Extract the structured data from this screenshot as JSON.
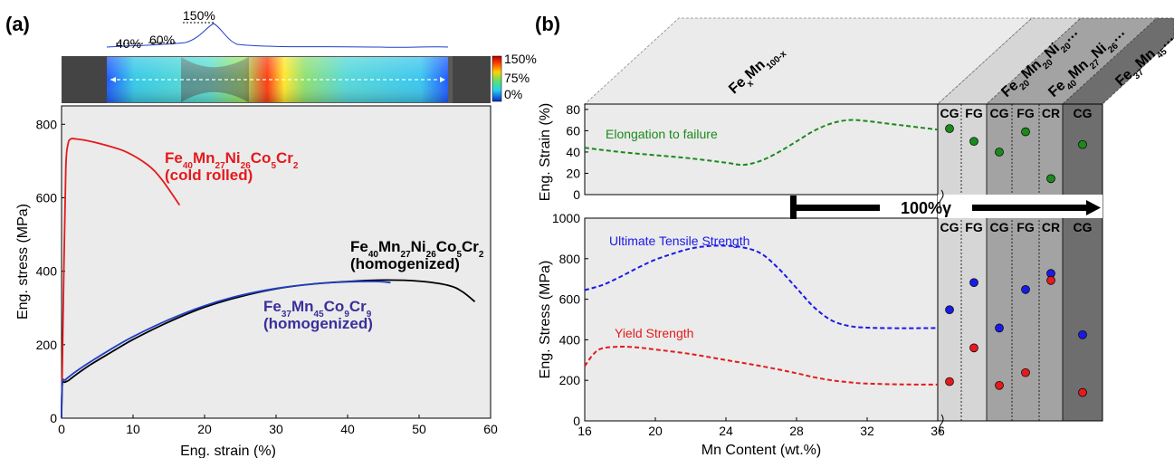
{
  "panel_a": {
    "label": "(a)",
    "strain_pcts": [
      "40%",
      "60%",
      "150%"
    ],
    "colorbar_ticks": [
      "150%",
      "75%",
      "0%"
    ],
    "chart_data": {
      "type": "line",
      "xlabel": "Eng. strain (%)",
      "ylabel": "Eng. stress (MPa)",
      "xlim": [
        0,
        60
      ],
      "ylim": [
        0,
        850
      ],
      "x_ticks": [
        0,
        10,
        20,
        30,
        40,
        50,
        60
      ],
      "y_ticks": [
        0,
        200,
        400,
        600,
        800
      ],
      "series": [
        {
          "color": "#e41a1c",
          "x": [
            0,
            0.3,
            0.6,
            0.9,
            1.3,
            2.0,
            3.5,
            6,
            9,
            12,
            14,
            16.5
          ],
          "y": [
            0,
            380,
            680,
            745,
            760,
            760,
            756,
            744,
            725,
            690,
            650,
            580
          ]
        },
        {
          "color": "#000000",
          "x": [
            0,
            0.1,
            0.5,
            1,
            2,
            4,
            7,
            10,
            15,
            20,
            25,
            30,
            35,
            40,
            45,
            50,
            54,
            56,
            57.8
          ],
          "y": [
            0,
            90,
            98,
            103,
            118,
            145,
            180,
            214,
            262,
            302,
            331,
            352,
            365,
            372,
            376,
            373,
            362,
            345,
            317
          ]
        },
        {
          "color": "#1f3fc8",
          "x": [
            0,
            0.1,
            0.5,
            1,
            2,
            4,
            7,
            10,
            15,
            20,
            25,
            30,
            35,
            40,
            44,
            46
          ],
          "y": [
            0,
            96,
            104,
            112,
            127,
            153,
            189,
            222,
            268,
            306,
            334,
            353,
            365,
            371,
            372,
            369
          ]
        }
      ],
      "annotations": [
        {
          "parts": [
            [
              "Fe",
              ""
            ],
            [
              "40",
              "sub"
            ],
            [
              "Mn",
              ""
            ],
            [
              "27",
              "sub"
            ],
            [
              "Ni",
              ""
            ],
            [
              "26",
              "sub"
            ],
            [
              "Co",
              ""
            ],
            [
              "5",
              "sub"
            ],
            [
              "Cr",
              ""
            ],
            [
              "2",
              "sub"
            ]
          ],
          "color": "#e41a1c"
        },
        {
          "parts": [
            [
              "(cold rolled)",
              ""
            ]
          ],
          "color": "#e41a1c"
        },
        {
          "parts": [
            [
              "Fe",
              ""
            ],
            [
              "40",
              "sub"
            ],
            [
              "Mn",
              ""
            ],
            [
              "27",
              "sub"
            ],
            [
              "Ni",
              ""
            ],
            [
              "26",
              "sub"
            ],
            [
              "Co",
              ""
            ],
            [
              "5",
              "sub"
            ],
            [
              "Cr",
              ""
            ],
            [
              "2",
              "sub"
            ]
          ],
          "color": "#000000"
        },
        {
          "parts": [
            [
              "(homogenized)",
              ""
            ]
          ],
          "color": "#000000"
        },
        {
          "parts": [
            [
              "Fe",
              ""
            ],
            [
              "37",
              "sub"
            ],
            [
              "Mn",
              ""
            ],
            [
              "45",
              "sub"
            ],
            [
              "Co",
              ""
            ],
            [
              "9",
              "sub"
            ],
            [
              "Cr",
              ""
            ],
            [
              "9",
              "sub"
            ]
          ],
          "color": "#3a2f9a"
        },
        {
          "parts": [
            [
              "(homogenized)",
              ""
            ]
          ],
          "color": "#3a2f9a"
        }
      ]
    }
  },
  "panel_b": {
    "label": "(b)",
    "column_headers": [
      {
        "parts": [
          [
            "Fe",
            ""
          ],
          [
            "x",
            "sub"
          ],
          [
            "Mn",
            ""
          ],
          [
            "100-x",
            "sub"
          ]
        ]
      },
      {
        "parts": [
          [
            "Fe",
            ""
          ],
          [
            "20",
            "sub"
          ],
          [
            "Mn",
            ""
          ],
          [
            "20",
            "sub"
          ],
          [
            "Ni",
            ""
          ],
          [
            "20",
            "sub"
          ],
          [
            "…",
            ""
          ]
        ]
      },
      {
        "parts": [
          [
            "Fe",
            ""
          ],
          [
            "40",
            "sub"
          ],
          [
            "Mn",
            ""
          ],
          [
            "27",
            "sub"
          ],
          [
            "Ni",
            ""
          ],
          [
            "26",
            "sub"
          ],
          [
            "…",
            ""
          ]
        ]
      },
      {
        "parts": [
          [
            "Fe",
            ""
          ],
          [
            "37",
            "sub"
          ],
          [
            "Mn",
            ""
          ],
          [
            "45",
            "sub"
          ],
          [
            "…",
            ""
          ]
        ]
      }
    ],
    "gamma_label": "100%γ",
    "cells": [
      "CG",
      "FG",
      "CG",
      "FG",
      "CR",
      "CG"
    ],
    "chart_data": [
      {
        "type": "line",
        "ylabel": "Eng. Strain (%)",
        "xlim": [
          16,
          36
        ],
        "ylim": [
          0,
          85
        ],
        "y_ticks": [
          0,
          20,
          40,
          60,
          80
        ],
        "series": [
          {
            "name": "Elongation to failure",
            "color": "#1a8a1a",
            "x": [
              16,
              18,
              20,
              22,
              24,
              25,
              26,
              27,
              28,
              29,
              30,
              31,
              32,
              34,
              36
            ],
            "y": [
              44,
              40,
              37,
              34,
              30,
              28,
              32,
              40,
              50,
              60,
              67,
              70,
              69,
              65,
              61
            ]
          }
        ],
        "points": [
          {
            "cell": 0,
            "color": "#1a8a1a",
            "y": 62
          },
          {
            "cell": 1,
            "color": "#1a8a1a",
            "y": 50
          },
          {
            "cell": 2,
            "color": "#1a8a1a",
            "y": 40
          },
          {
            "cell": 3,
            "color": "#1a8a1a",
            "y": 59
          },
          {
            "cell": 4,
            "color": "#1a8a1a",
            "y": 15
          },
          {
            "cell": 5,
            "color": "#1a8a1a",
            "y": 47
          }
        ]
      },
      {
        "type": "line",
        "xlabel": "Mn Content (wt.%)",
        "ylabel": "Eng. Stress (MPa)",
        "xlim": [
          16,
          36
        ],
        "ylim": [
          0,
          1000
        ],
        "x_ticks": [
          16,
          20,
          24,
          28,
          32,
          36
        ],
        "y_ticks": [
          0,
          200,
          400,
          600,
          800,
          1000
        ],
        "series": [
          {
            "name": "Ultimate Tensile Strength",
            "color": "#1a1ae6",
            "x": [
              16,
              17,
              18,
              19,
              20,
              21,
              22,
              23,
              24,
              25,
              26,
              27,
              28,
              29,
              30,
              31,
              32,
              34,
              36
            ],
            "y": [
              645,
              670,
              710,
              755,
              795,
              825,
              850,
              862,
              864,
              855,
              825,
              750,
              655,
              560,
              495,
              468,
              460,
              457,
              458
            ]
          },
          {
            "name": "Yield Strength",
            "color": "#e41a1c",
            "x": [
              16,
              16.5,
              17,
              18,
              19,
              20,
              22,
              24,
              26,
              28,
              29,
              30,
              31,
              32,
              34,
              36
            ],
            "y": [
              270,
              330,
              358,
              366,
              362,
              352,
              330,
              300,
              270,
              235,
              215,
              200,
              190,
              184,
              180,
              179
            ]
          }
        ],
        "points": [
          {
            "cell": 0,
            "color": "#1a1ae6",
            "y": 548
          },
          {
            "cell": 0,
            "color": "#e41a1c",
            "y": 194
          },
          {
            "cell": 1,
            "color": "#1a1ae6",
            "y": 682
          },
          {
            "cell": 1,
            "color": "#e41a1c",
            "y": 360
          },
          {
            "cell": 2,
            "color": "#1a1ae6",
            "y": 458
          },
          {
            "cell": 2,
            "color": "#e41a1c",
            "y": 175
          },
          {
            "cell": 3,
            "color": "#1a1ae6",
            "y": 648
          },
          {
            "cell": 3,
            "color": "#e41a1c",
            "y": 238
          },
          {
            "cell": 4,
            "color": "#1a1ae6",
            "y": 727
          },
          {
            "cell": 4,
            "color": "#e41a1c",
            "y": 693
          },
          {
            "cell": 5,
            "color": "#1a1ae6",
            "y": 425
          },
          {
            "cell": 5,
            "color": "#e41a1c",
            "y": 140
          }
        ]
      }
    ]
  }
}
